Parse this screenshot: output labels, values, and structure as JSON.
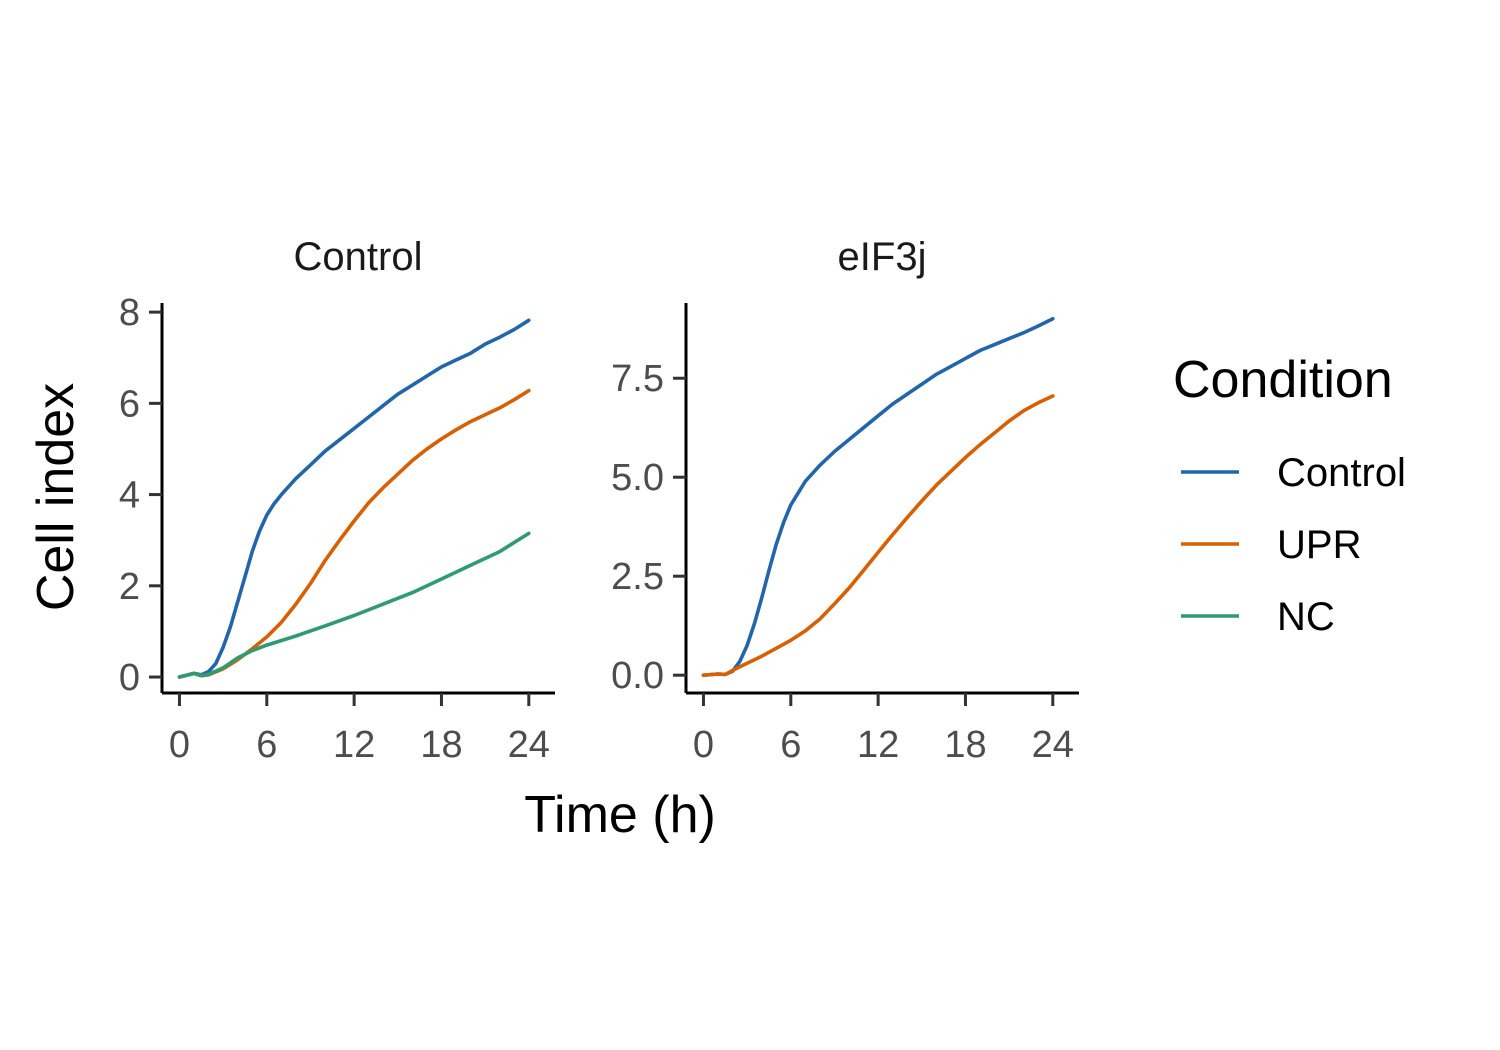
{
  "chart_data": {
    "type": "line",
    "xlabel": "Time (h)",
    "ylabel": "Cell index",
    "legend": {
      "title": "Condition",
      "placement": "right",
      "entries": [
        {
          "name": "Control",
          "color": "#2166AC"
        },
        {
          "name": "UPR",
          "color": "#D95F02"
        },
        {
          "name": "NC",
          "color": "#2E9B73"
        }
      ]
    },
    "grid": false,
    "panels": [
      {
        "strip": "Control",
        "xlim": [
          -1.2,
          25.8
        ],
        "ylim": [
          -0.35,
          8.2
        ],
        "xticks": [
          0,
          6,
          12,
          18,
          24
        ],
        "yticks": [
          0,
          2,
          4,
          6,
          8
        ],
        "ytick_labels": [
          "0",
          "2",
          "4",
          "6",
          "8"
        ],
        "series": [
          {
            "name": "Control",
            "color": "#2166AC",
            "x": [
              0,
              1,
              1.5,
              2,
              2.5,
              3,
              3.5,
              4,
              4.5,
              5,
              5.5,
              6,
              6.5,
              7,
              8,
              9,
              10,
              11,
              12,
              13,
              14,
              15,
              16,
              17,
              18,
              19,
              20,
              21,
              22,
              23,
              24
            ],
            "y": [
              0.0,
              0.08,
              0.05,
              0.12,
              0.3,
              0.65,
              1.1,
              1.65,
              2.2,
              2.75,
              3.2,
              3.55,
              3.8,
              4.0,
              4.35,
              4.65,
              4.95,
              5.2,
              5.45,
              5.7,
              5.95,
              6.2,
              6.4,
              6.6,
              6.8,
              6.95,
              7.1,
              7.3,
              7.45,
              7.62,
              7.82
            ]
          },
          {
            "name": "UPR",
            "color": "#D95F02",
            "x": [
              0,
              1,
              1.5,
              2,
              3,
              4,
              5,
              6,
              7,
              8,
              9,
              10,
              11,
              12,
              13,
              14,
              15,
              16,
              17,
              18,
              19,
              20,
              21,
              22,
              23,
              24
            ],
            "y": [
              0.0,
              0.08,
              0.03,
              0.05,
              0.18,
              0.38,
              0.62,
              0.88,
              1.2,
              1.6,
              2.05,
              2.55,
              3.0,
              3.42,
              3.82,
              4.15,
              4.45,
              4.75,
              5.0,
              5.22,
              5.42,
              5.6,
              5.75,
              5.9,
              6.08,
              6.28
            ]
          },
          {
            "name": "NC",
            "color": "#2E9B73",
            "x": [
              0,
              1,
              1.5,
              2,
              3,
              4,
              5,
              6,
              8,
              10,
              12,
              14,
              16,
              18,
              20,
              22,
              24
            ],
            "y": [
              0.0,
              0.08,
              0.03,
              0.06,
              0.2,
              0.42,
              0.58,
              0.7,
              0.9,
              1.12,
              1.35,
              1.6,
              1.85,
              2.15,
              2.45,
              2.75,
              3.15
            ]
          }
        ]
      },
      {
        "strip": "eIF3j",
        "xlim": [
          -1.2,
          25.8
        ],
        "ylim": [
          -0.45,
          9.4
        ],
        "xticks": [
          0,
          6,
          12,
          18,
          24
        ],
        "yticks": [
          0,
          2.5,
          5,
          7.5
        ],
        "ytick_labels": [
          "0.0",
          "2.5",
          "5.0",
          "7.5"
        ],
        "series": [
          {
            "name": "Control",
            "color": "#2166AC",
            "x": [
              0,
              1,
              1.5,
              2,
              2.5,
              3,
              3.5,
              4,
              4.5,
              5,
              5.5,
              6,
              6.5,
              7,
              8,
              9,
              10,
              11,
              12,
              13,
              14,
              15,
              16,
              17,
              18,
              19,
              20,
              21,
              22,
              23,
              24
            ],
            "y": [
              0.0,
              0.03,
              0.02,
              0.1,
              0.35,
              0.75,
              1.3,
              1.95,
              2.65,
              3.3,
              3.85,
              4.3,
              4.6,
              4.9,
              5.3,
              5.65,
              5.95,
              6.25,
              6.55,
              6.85,
              7.1,
              7.35,
              7.6,
              7.8,
              8.0,
              8.2,
              8.35,
              8.5,
              8.65,
              8.82,
              9.0
            ]
          },
          {
            "name": "UPR",
            "color": "#D95F02",
            "x": [
              0,
              1,
              1.5,
              2,
              3,
              4,
              5,
              6,
              7,
              8,
              9,
              10,
              11,
              12,
              13,
              14,
              15,
              16,
              17,
              18,
              19,
              20,
              21,
              22,
              23,
              24
            ],
            "y": [
              0.0,
              0.03,
              0.02,
              0.12,
              0.3,
              0.48,
              0.68,
              0.88,
              1.12,
              1.42,
              1.8,
              2.2,
              2.65,
              3.1,
              3.55,
              3.98,
              4.4,
              4.8,
              5.15,
              5.5,
              5.82,
              6.12,
              6.42,
              6.68,
              6.88,
              7.05
            ]
          }
        ]
      }
    ]
  }
}
